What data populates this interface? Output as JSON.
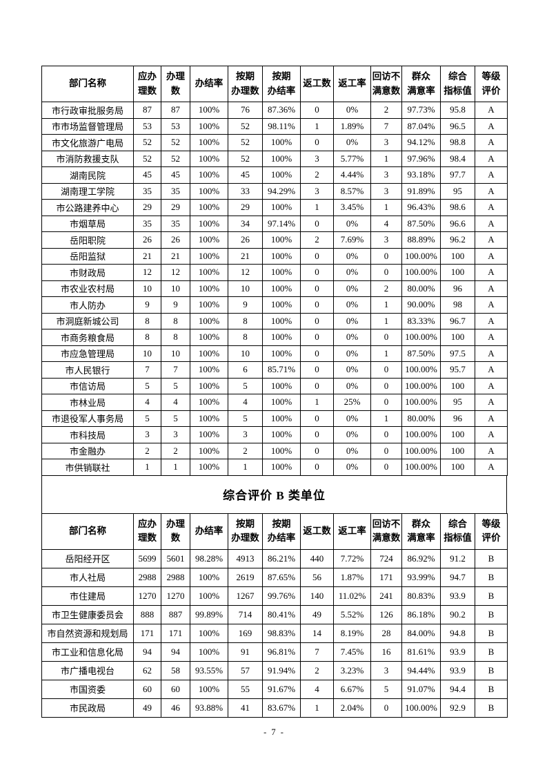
{
  "document": {
    "section_b_title": "综合评价 B 类单位",
    "page_number": "- 7 -"
  },
  "table_columns": [
    "部门名称",
    "应办\n理数",
    "办理\n数",
    "办结率",
    "按期\n办理数",
    "按期\n办结率",
    "返工数",
    "返工率",
    "回访不\n满意数",
    "群众\n满意率",
    "综合\n指标值",
    "等级\n评价"
  ],
  "class_a_table": {
    "rows": [
      [
        "市行政审批服务局",
        "87",
        "87",
        "100%",
        "76",
        "87.36%",
        "0",
        "0%",
        "2",
        "97.73%",
        "95.8",
        "A"
      ],
      [
        "市市场监督管理局",
        "53",
        "53",
        "100%",
        "52",
        "98.11%",
        "1",
        "1.89%",
        "7",
        "87.04%",
        "96.5",
        "A"
      ],
      [
        "市文化旅游广电局",
        "52",
        "52",
        "100%",
        "52",
        "100%",
        "0",
        "0%",
        "3",
        "94.12%",
        "98.8",
        "A"
      ],
      [
        "市消防救援支队",
        "52",
        "52",
        "100%",
        "52",
        "100%",
        "3",
        "5.77%",
        "1",
        "97.96%",
        "98.4",
        "A"
      ],
      [
        "湖南民院",
        "45",
        "45",
        "100%",
        "45",
        "100%",
        "2",
        "4.44%",
        "3",
        "93.18%",
        "97.7",
        "A"
      ],
      [
        "湖南理工学院",
        "35",
        "35",
        "100%",
        "33",
        "94.29%",
        "3",
        "8.57%",
        "3",
        "91.89%",
        "95",
        "A"
      ],
      [
        "市公路建养中心",
        "29",
        "29",
        "100%",
        "29",
        "100%",
        "1",
        "3.45%",
        "1",
        "96.43%",
        "98.6",
        "A"
      ],
      [
        "市烟草局",
        "35",
        "35",
        "100%",
        "34",
        "97.14%",
        "0",
        "0%",
        "4",
        "87.50%",
        "96.6",
        "A"
      ],
      [
        "岳阳职院",
        "26",
        "26",
        "100%",
        "26",
        "100%",
        "2",
        "7.69%",
        "3",
        "88.89%",
        "96.2",
        "A"
      ],
      [
        "岳阳监狱",
        "21",
        "21",
        "100%",
        "21",
        "100%",
        "0",
        "0%",
        "0",
        "100.00%",
        "100",
        "A"
      ],
      [
        "市财政局",
        "12",
        "12",
        "100%",
        "12",
        "100%",
        "0",
        "0%",
        "0",
        "100.00%",
        "100",
        "A"
      ],
      [
        "市农业农村局",
        "10",
        "10",
        "100%",
        "10",
        "100%",
        "0",
        "0%",
        "2",
        "80.00%",
        "96",
        "A"
      ],
      [
        "市人防办",
        "9",
        "9",
        "100%",
        "9",
        "100%",
        "0",
        "0%",
        "1",
        "90.00%",
        "98",
        "A"
      ],
      [
        "市洞庭新城公司",
        "8",
        "8",
        "100%",
        "8",
        "100%",
        "0",
        "0%",
        "1",
        "83.33%",
        "96.7",
        "A"
      ],
      [
        "市商务粮食局",
        "8",
        "8",
        "100%",
        "8",
        "100%",
        "0",
        "0%",
        "0",
        "100.00%",
        "100",
        "A"
      ],
      [
        "市应急管理局",
        "10",
        "10",
        "100%",
        "10",
        "100%",
        "0",
        "0%",
        "1",
        "87.50%",
        "97.5",
        "A"
      ],
      [
        "市人民银行",
        "7",
        "7",
        "100%",
        "6",
        "85.71%",
        "0",
        "0%",
        "0",
        "100.00%",
        "95.7",
        "A"
      ],
      [
        "市信访局",
        "5",
        "5",
        "100%",
        "5",
        "100%",
        "0",
        "0%",
        "0",
        "100.00%",
        "100",
        "A"
      ],
      [
        "市林业局",
        "4",
        "4",
        "100%",
        "4",
        "100%",
        "1",
        "25%",
        "0",
        "100.00%",
        "95",
        "A"
      ],
      [
        "市退役军人事务局",
        "5",
        "5",
        "100%",
        "5",
        "100%",
        "0",
        "0%",
        "1",
        "80.00%",
        "96",
        "A"
      ],
      [
        "市科技局",
        "3",
        "3",
        "100%",
        "3",
        "100%",
        "0",
        "0%",
        "0",
        "100.00%",
        "100",
        "A"
      ],
      [
        "市金融办",
        "2",
        "2",
        "100%",
        "2",
        "100%",
        "0",
        "0%",
        "0",
        "100.00%",
        "100",
        "A"
      ],
      [
        "市供销联社",
        "1",
        "1",
        "100%",
        "1",
        "100%",
        "0",
        "0%",
        "0",
        "100.00%",
        "100",
        "A"
      ]
    ]
  },
  "class_b_table": {
    "rows": [
      [
        "岳阳经开区",
        "5699",
        "5601",
        "98.28%",
        "4913",
        "86.21%",
        "440",
        "7.72%",
        "724",
        "86.92%",
        "91.2",
        "B"
      ],
      [
        "市人社局",
        "2988",
        "2988",
        "100%",
        "2619",
        "87.65%",
        "56",
        "1.87%",
        "171",
        "93.99%",
        "94.7",
        "B"
      ],
      [
        "市住建局",
        "1270",
        "1270",
        "100%",
        "1267",
        "99.76%",
        "140",
        "11.02%",
        "241",
        "80.83%",
        "93.9",
        "B"
      ],
      [
        "市卫生健康委员会",
        "888",
        "887",
        "99.89%",
        "714",
        "80.41%",
        "49",
        "5.52%",
        "126",
        "86.18%",
        "90.2",
        "B"
      ],
      [
        "市自然资源和规划局",
        "171",
        "171",
        "100%",
        "169",
        "98.83%",
        "14",
        "8.19%",
        "28",
        "84.00%",
        "94.8",
        "B"
      ],
      [
        "市工业和信息化局",
        "94",
        "94",
        "100%",
        "91",
        "96.81%",
        "7",
        "7.45%",
        "16",
        "81.61%",
        "93.9",
        "B"
      ],
      [
        "市广播电视台",
        "62",
        "58",
        "93.55%",
        "57",
        "91.94%",
        "2",
        "3.23%",
        "3",
        "94.44%",
        "93.9",
        "B"
      ],
      [
        "市国资委",
        "60",
        "60",
        "100%",
        "55",
        "91.67%",
        "4",
        "6.67%",
        "5",
        "91.07%",
        "94.4",
        "B"
      ],
      [
        "市民政局",
        "49",
        "46",
        "93.88%",
        "41",
        "83.67%",
        "1",
        "2.04%",
        "0",
        "100.00%",
        "92.9",
        "B"
      ]
    ]
  }
}
